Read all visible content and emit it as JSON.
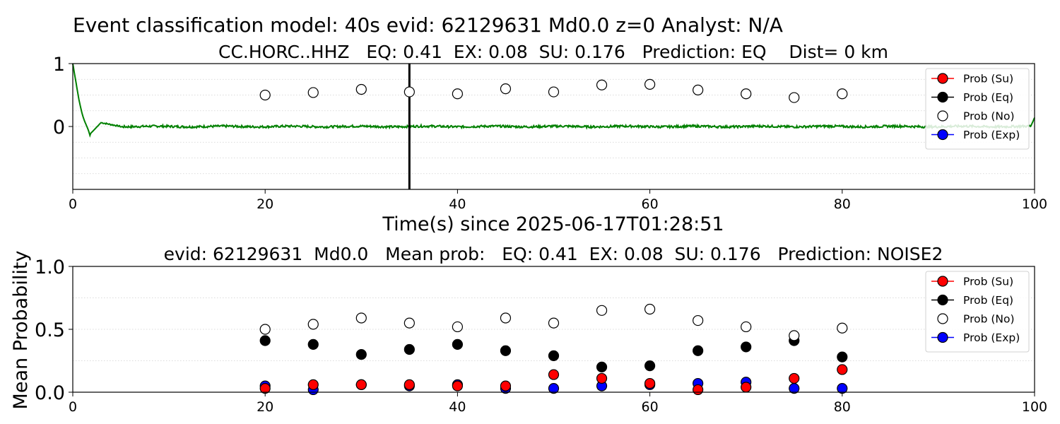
{
  "figure": {
    "suptitle": "Event classification model: 40s evid: 62129631 Md0.0 z=0 Analyst: N/A"
  },
  "chart_data": [
    {
      "type": "scatter",
      "title": "CC.HORC..HHZ   EQ: 0.41  EX: 0.08  SU: 0.176   Prediction: EQ    Dist= 0 km",
      "xlabel": "Time(s) since 2025-06-17T01:28:51",
      "ylabel": "",
      "xlim": [
        0,
        100
      ],
      "ylim": [
        -1,
        1
      ],
      "x_ticks": [
        "0",
        "20",
        "40",
        "60",
        "80",
        "100"
      ],
      "y_ticks": [
        "1",
        "0"
      ],
      "grid": "horizontal dotted",
      "legend_position": "top-right",
      "vertical_line_x": 35,
      "waveform_color": "#008000",
      "series": [
        {
          "name": "Prob (No)",
          "x": [
            20,
            25,
            30,
            35,
            40,
            45,
            50,
            55,
            60,
            65,
            70,
            75,
            80
          ],
          "y": [
            0.5,
            0.54,
            0.59,
            0.55,
            0.52,
            0.6,
            0.55,
            0.66,
            0.67,
            0.58,
            0.52,
            0.46,
            0.52
          ]
        }
      ],
      "legend": [
        {
          "label": "Prob (Su)",
          "color": "#ff0000"
        },
        {
          "label": "Prob (Eq)",
          "color": "#000000"
        },
        {
          "label": "Prob (No)",
          "color": "#ffffff"
        },
        {
          "label": "Prob (Exp)",
          "color": "#0000ff"
        }
      ]
    },
    {
      "type": "scatter",
      "title": "evid: 62129631  Md0.0   Mean prob:   EQ: 0.41  EX: 0.08  SU: 0.176   Prediction: NOISE2",
      "xlabel": "",
      "ylabel": "Mean Probability",
      "xlim": [
        0,
        100
      ],
      "ylim": [
        0,
        1
      ],
      "x_ticks": [
        "0",
        "20",
        "40",
        "60",
        "80",
        "100"
      ],
      "y_ticks": [
        "0.0",
        "0.5",
        "1.0"
      ],
      "grid": "horizontal dotted",
      "legend_position": "top-right",
      "x": [
        20,
        25,
        30,
        35,
        40,
        45,
        50,
        55,
        60,
        65,
        70,
        75,
        80
      ],
      "series": [
        {
          "name": "Prob (Exp)",
          "color": "#0000ff",
          "values": [
            0.05,
            0.02,
            0.06,
            0.05,
            0.06,
            0.03,
            0.03,
            0.05,
            0.06,
            0.07,
            0.08,
            0.03,
            0.03
          ]
        },
        {
          "name": "Prob (Su)",
          "color": "#ff0000",
          "values": [
            0.03,
            0.06,
            0.06,
            0.06,
            0.05,
            0.05,
            0.14,
            0.11,
            0.07,
            0.02,
            0.04,
            0.11,
            0.18
          ]
        },
        {
          "name": "Prob (Eq)",
          "color": "#000000",
          "values": [
            0.41,
            0.38,
            0.3,
            0.34,
            0.38,
            0.33,
            0.29,
            0.2,
            0.21,
            0.33,
            0.36,
            0.41,
            0.28
          ]
        },
        {
          "name": "Prob (No)",
          "color": "#ffffff",
          "values": [
            0.5,
            0.54,
            0.59,
            0.55,
            0.52,
            0.59,
            0.55,
            0.65,
            0.66,
            0.57,
            0.52,
            0.45,
            0.51
          ]
        }
      ],
      "legend": [
        {
          "label": "Prob (Su)",
          "color": "#ff0000"
        },
        {
          "label": "Prob (Eq)",
          "color": "#000000"
        },
        {
          "label": "Prob (No)",
          "color": "#ffffff"
        },
        {
          "label": "Prob (Exp)",
          "color": "#0000ff"
        }
      ]
    }
  ]
}
